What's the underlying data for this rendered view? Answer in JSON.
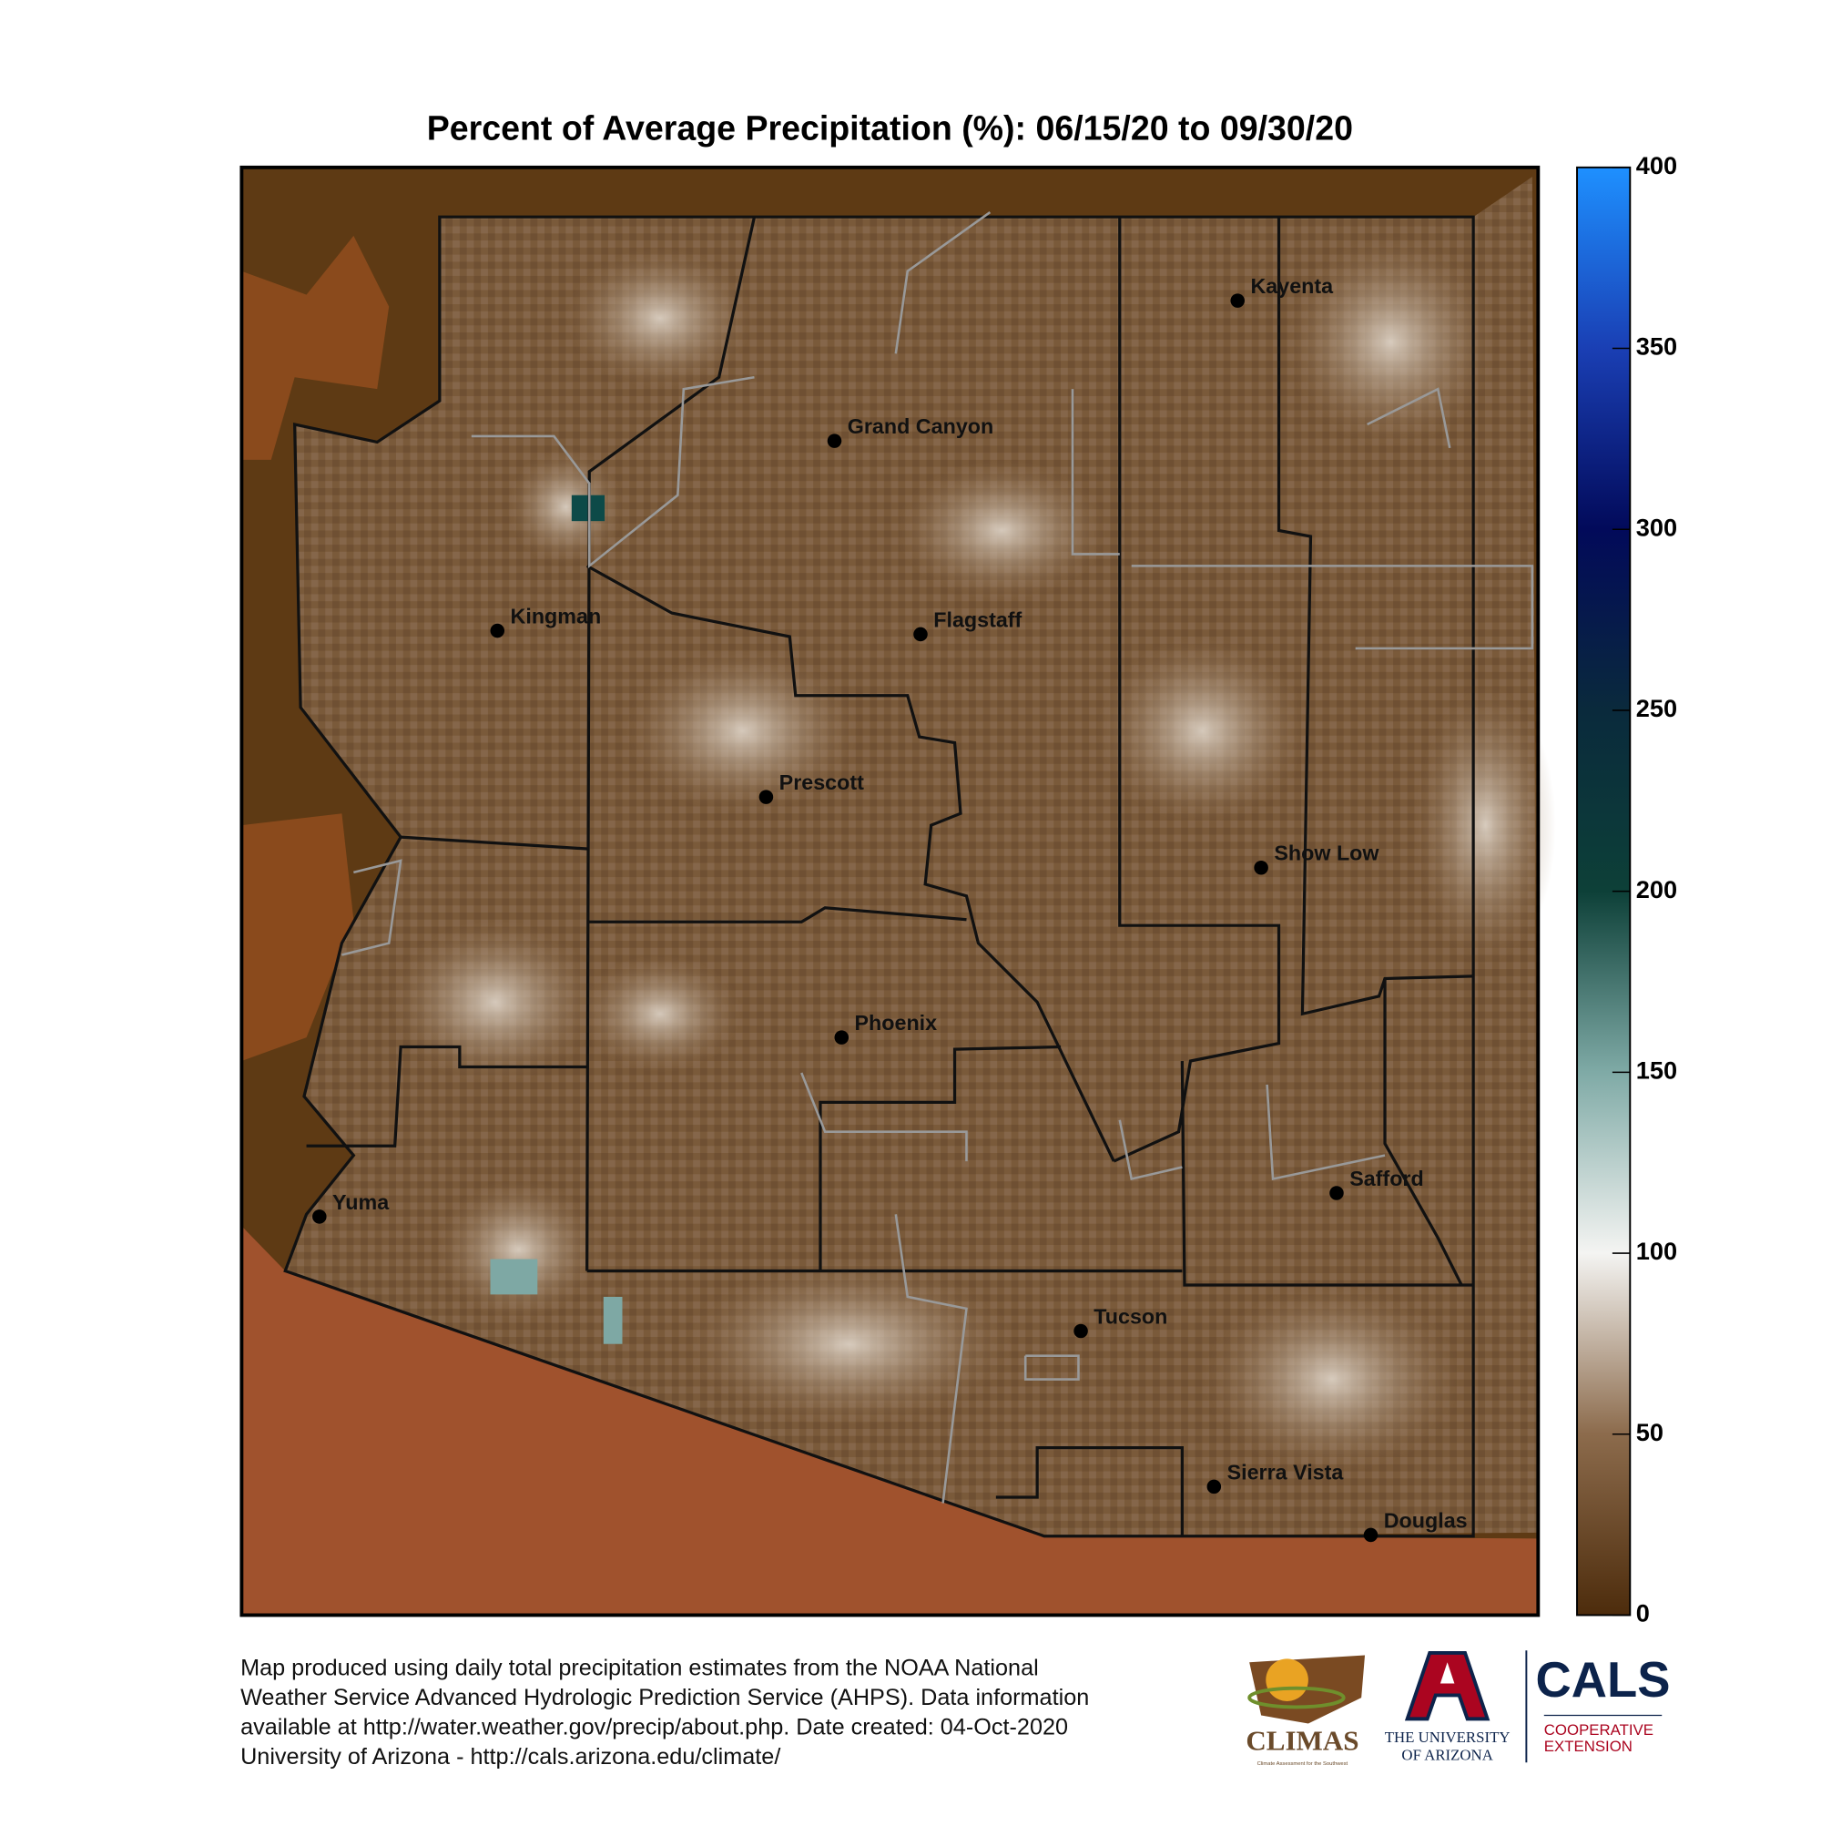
{
  "title": "Percent of Average Precipitation (%): 06/15/20 to 09/30/20",
  "cities": [
    "Kayenta",
    "Grand Canyon",
    "Kingman",
    "Flagstaff",
    "Prescott",
    "Show Low",
    "Phoenix",
    "Yuma",
    "Safford",
    "Tucson",
    "Sierra Vista",
    "Douglas"
  ],
  "colorbar": {
    "lim": [
      0,
      400
    ],
    "ticks": [
      0,
      50,
      100,
      150,
      200,
      250,
      300,
      350,
      400
    ]
  },
  "footer": [
    "Map produced using daily total precipitation estimates from the NOAA National",
    "Weather Service Advanced Hydrologic Prediction Service (AHPS). Data information",
    "available at http://water.weather.gov/precip/about.php. Date created: 04-Oct-2020",
    "University of Arizona - http://cals.arizona.edu/climate/"
  ],
  "logos": {
    "climas": "CLIMAS",
    "climas_sub": "Climate Assessment for the Southwest",
    "ua_line1": "THE UNIVERSITY",
    "ua_line2": "OF ARIZONA",
    "cals": "CALS",
    "cals_line1": "COOPERATIVE",
    "cals_line2": "EXTENSION"
  }
}
